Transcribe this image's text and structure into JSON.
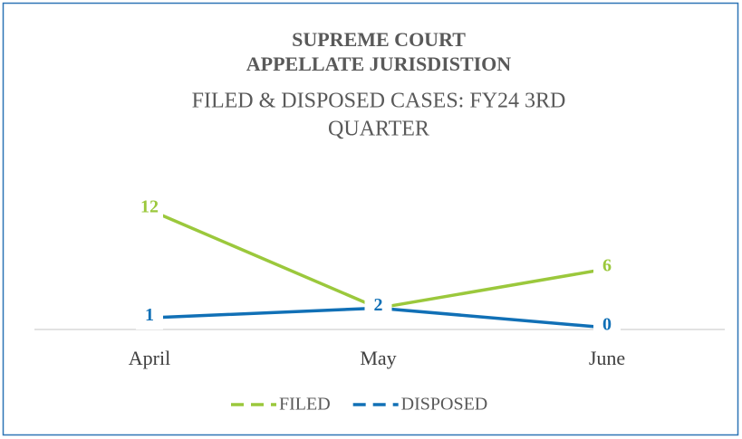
{
  "chart_data": {
    "type": "line",
    "title": [
      "SUPREME COURT",
      "APPELLATE JURISDISTION"
    ],
    "subtitle": [
      "FILED & DISPOSED CASES: FY24 3RD",
      "QUARTER"
    ],
    "categories": [
      "April",
      "May",
      "June"
    ],
    "series": [
      {
        "name": "FILED",
        "color": "#9bc83c",
        "values": [
          12,
          2,
          6
        ]
      },
      {
        "name": "DISPOSED",
        "color": "#1170b6",
        "values": [
          1,
          2,
          0
        ]
      }
    ],
    "ylim": [
      0,
      12
    ],
    "legend": "bottom"
  }
}
